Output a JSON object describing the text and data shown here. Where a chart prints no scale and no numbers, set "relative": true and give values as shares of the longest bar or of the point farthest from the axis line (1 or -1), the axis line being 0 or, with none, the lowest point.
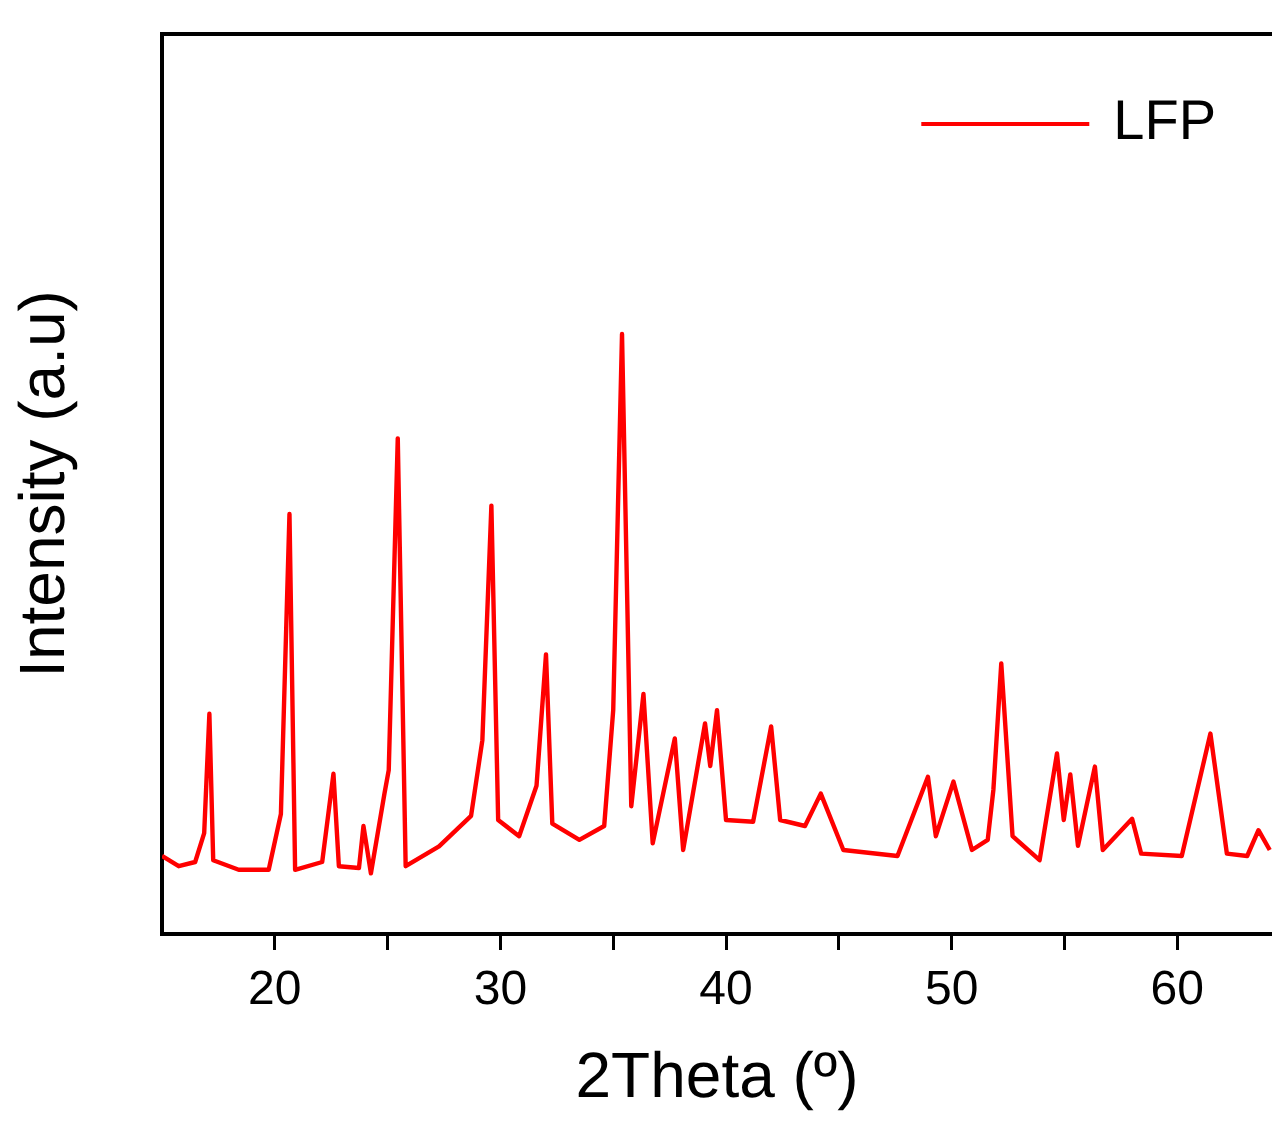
{
  "chart_data": {
    "type": "line",
    "xlabel": "2Theta (º)",
    "ylabel": "Intensity (a.u)",
    "relative": true,
    "legend": "top right",
    "marker": "none",
    "grid": false,
    "xlim": [
      15,
      64.2
    ],
    "xticks": [
      20,
      {
        "value": 25,
        "label": null
      },
      30,
      {
        "value": 35,
        "label": null
      },
      40,
      {
        "value": 45,
        "label": null
      },
      50,
      {
        "value": 55,
        "label": null
      },
      60
    ],
    "series": [
      {
        "name": "LFP",
        "color": "#ff0000",
        "x": [
          15.0,
          15.74,
          16.47,
          16.87,
          17.1,
          17.27,
          18.4,
          19.73,
          20.27,
          20.65,
          20.9,
          22.1,
          22.6,
          22.84,
          23.73,
          23.93,
          24.26,
          24.86,
          25.05,
          25.45,
          25.8,
          27.28,
          28.7,
          29.2,
          29.6,
          29.9,
          30.83,
          31.6,
          32.02,
          32.3,
          33.5,
          34.6,
          35.0,
          35.39,
          35.8,
          36.34,
          36.75,
          37.73,
          38.1,
          39.07,
          39.3,
          39.6,
          40.0,
          41.2,
          42.0,
          42.4,
          43.5,
          44.2,
          45.2,
          47.6,
          48.95,
          49.3,
          50.08,
          50.9,
          51.6,
          51.85,
          52.2,
          52.7,
          53.9,
          54.67,
          54.97,
          55.26,
          55.6,
          56.35,
          56.7,
          58.0,
          58.4,
          60.2,
          61.47,
          62.2,
          63.1,
          63.6,
          64.1
        ],
        "values": [
          0.13,
          0.113,
          0.12,
          0.168,
          0.367,
          0.123,
          0.107,
          0.107,
          0.2,
          0.7,
          0.107,
          0.12,
          0.267,
          0.113,
          0.11,
          0.18,
          0.101,
          0.234,
          0.273,
          0.826,
          0.113,
          0.146,
          0.197,
          0.323,
          0.714,
          0.19,
          0.163,
          0.247,
          0.466,
          0.184,
          0.157,
          0.18,
          0.373,
          1.0,
          0.213,
          0.4,
          0.151,
          0.326,
          0.14,
          0.351,
          0.28,
          0.373,
          0.19,
          0.187,
          0.346,
          0.19,
          0.18,
          0.234,
          0.14,
          0.13,
          0.262,
          0.163,
          0.254,
          0.14,
          0.157,
          0.24,
          0.451,
          0.163,
          0.123,
          0.301,
          0.19,
          0.266,
          0.147,
          0.279,
          0.14,
          0.192,
          0.134,
          0.13,
          0.334,
          0.134,
          0.13,
          0.173,
          0.14
        ]
      }
    ]
  }
}
